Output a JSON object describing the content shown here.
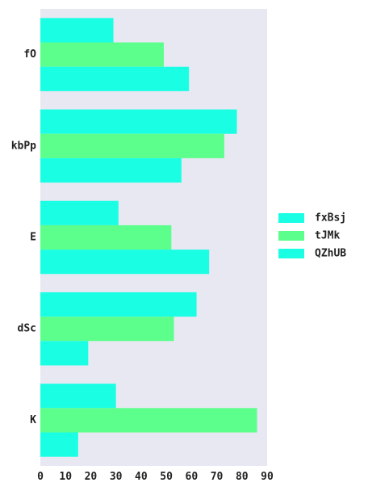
{
  "chart_data": {
    "type": "bar",
    "orientation": "horizontal",
    "categories": [
      "fO",
      "kbPp",
      "E",
      "dSc",
      "K"
    ],
    "series": [
      {
        "name": "fxBsj",
        "color": "#1affe4",
        "values": [
          29,
          78,
          31,
          62,
          30
        ]
      },
      {
        "name": "tJMk",
        "color": "#5cff8c",
        "values": [
          49,
          73,
          52,
          53,
          86
        ]
      },
      {
        "name": "QZhUB",
        "color": "#1affe4",
        "values": [
          59,
          56,
          67,
          19,
          15
        ]
      }
    ],
    "xlim": [
      0,
      90
    ],
    "xticks": [
      0,
      10,
      20,
      30,
      40,
      50,
      60,
      70,
      80,
      90
    ],
    "title": "",
    "xlabel": "",
    "ylabel": "",
    "grid": false,
    "legend_position": "right",
    "plot_background": "#e8e8f2"
  }
}
